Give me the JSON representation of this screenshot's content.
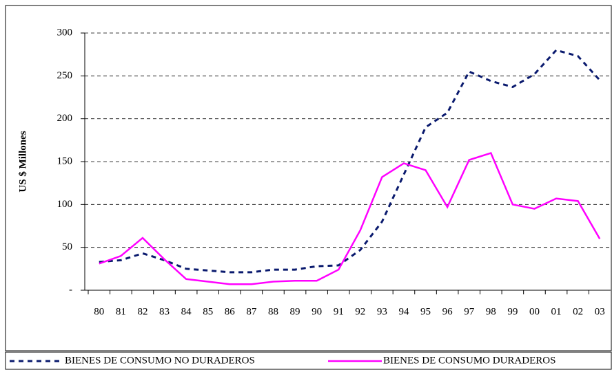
{
  "chart_data": {
    "type": "line",
    "y_label": "US $ Millones",
    "categories": [
      "80",
      "81",
      "82",
      "83",
      "84",
      "85",
      "86",
      "87",
      "88",
      "89",
      "90",
      "91",
      "92",
      "93",
      "94",
      "95",
      "96",
      "97",
      "98",
      "99",
      "00",
      "01",
      "02",
      "03"
    ],
    "series": [
      {
        "name": "BIENES DE CONSUMO NO DURADEROS",
        "color": "#0a1a6e",
        "dash": true,
        "values": [
          33,
          35,
          43,
          35,
          25,
          23,
          21,
          21,
          24,
          24,
          28,
          29,
          47,
          80,
          135,
          190,
          207,
          255,
          244,
          237,
          252,
          280,
          273,
          245
        ]
      },
      {
        "name": "BIENES DE CONSUMO DURADEROS",
        "color": "#ff00ff",
        "dash": false,
        "values": [
          31,
          40,
          61,
          36,
          13,
          10,
          7,
          7,
          10,
          11,
          11,
          24,
          70,
          132,
          148,
          140,
          97,
          152,
          160,
          100,
          95,
          107,
          104,
          60
        ]
      }
    ],
    "ylim": [
      0,
      300
    ],
    "yticks": [
      {
        "value": 0,
        "label": "-"
      },
      50,
      100,
      150,
      200,
      250,
      300
    ],
    "grid": true
  }
}
